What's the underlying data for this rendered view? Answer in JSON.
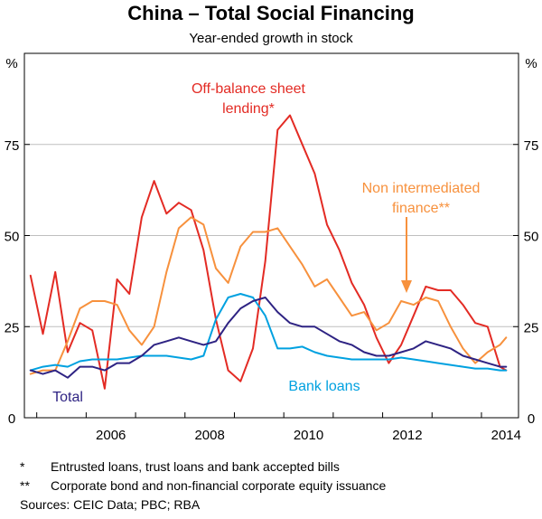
{
  "chart_data": {
    "type": "line",
    "title": "China – Total Social Financing",
    "subtitle": "Year-ended growth in stock",
    "y_unit_left": "%",
    "y_unit_right": "%",
    "ylim": [
      0,
      100
    ],
    "yticks": [
      0,
      25,
      50,
      75
    ],
    "xlim": [
      2004.75,
      2014.75
    ],
    "xticks": [
      2006,
      2008,
      2010,
      2012,
      2014
    ],
    "grid": "horizontal",
    "series": [
      {
        "name": "Off-balance sheet lending*",
        "color": "#e32b24",
        "x": [
          2004.875,
          2005.125,
          2005.375,
          2005.625,
          2005.875,
          2006.125,
          2006.375,
          2006.625,
          2006.875,
          2007.125,
          2007.375,
          2007.625,
          2007.875,
          2008.125,
          2008.375,
          2008.625,
          2008.875,
          2009.125,
          2009.375,
          2009.625,
          2009.875,
          2010.125,
          2010.375,
          2010.625,
          2010.875,
          2011.125,
          2011.375,
          2011.625,
          2011.875,
          2012.125,
          2012.375,
          2012.625,
          2012.875,
          2013.125,
          2013.375,
          2013.625,
          2013.875,
          2014.125,
          2014.375,
          2014.5
        ],
        "y": [
          39,
          23,
          40,
          18,
          26,
          24,
          8,
          38,
          34,
          55,
          65,
          56,
          59,
          57,
          46,
          27,
          13,
          10,
          19,
          43,
          79,
          83,
          75,
          67,
          53,
          46,
          37,
          31,
          22,
          15,
          20,
          28,
          36,
          35,
          35,
          31,
          26,
          25,
          14,
          13
        ]
      },
      {
        "name": "Non intermediated finance**",
        "color": "#f7913d",
        "x": [
          2004.875,
          2005.125,
          2005.375,
          2005.625,
          2005.875,
          2006.125,
          2006.375,
          2006.625,
          2006.875,
          2007.125,
          2007.375,
          2007.625,
          2007.875,
          2008.125,
          2008.375,
          2008.625,
          2008.875,
          2009.125,
          2009.375,
          2009.625,
          2009.875,
          2010.125,
          2010.375,
          2010.625,
          2010.875,
          2011.125,
          2011.375,
          2011.625,
          2011.875,
          2012.125,
          2012.375,
          2012.625,
          2012.875,
          2013.125,
          2013.375,
          2013.625,
          2013.875,
          2014.125,
          2014.375,
          2014.5
        ],
        "y": [
          12,
          13,
          13,
          21,
          30,
          32,
          32,
          31,
          24,
          20,
          25,
          40,
          52,
          55,
          53,
          41,
          37,
          47,
          51,
          51,
          52,
          47,
          42,
          36,
          38,
          33,
          28,
          29,
          24,
          26,
          32,
          31,
          33,
          32,
          25,
          19,
          15,
          18,
          20,
          22
        ]
      },
      {
        "name": "Bank loans",
        "color": "#00a1e0",
        "x": [
          2004.875,
          2005.125,
          2005.375,
          2005.625,
          2005.875,
          2006.125,
          2006.375,
          2006.625,
          2006.875,
          2007.125,
          2007.375,
          2007.625,
          2007.875,
          2008.125,
          2008.375,
          2008.625,
          2008.875,
          2009.125,
          2009.375,
          2009.625,
          2009.875,
          2010.125,
          2010.375,
          2010.625,
          2010.875,
          2011.125,
          2011.375,
          2011.625,
          2011.875,
          2012.125,
          2012.375,
          2012.625,
          2012.875,
          2013.125,
          2013.375,
          2013.625,
          2013.875,
          2014.125,
          2014.375,
          2014.5
        ],
        "y": [
          13,
          14,
          14.5,
          14,
          15.5,
          16,
          16,
          16,
          16.5,
          17,
          17,
          17,
          16.5,
          16,
          17,
          27,
          33,
          34,
          33,
          28,
          19,
          19,
          19.5,
          18,
          17,
          16.5,
          16,
          16,
          16,
          16,
          16.5,
          16,
          15.5,
          15,
          14.5,
          14,
          13.5,
          13.5,
          13,
          13
        ]
      },
      {
        "name": "Total",
        "color": "#2e2383",
        "x": [
          2004.875,
          2005.125,
          2005.375,
          2005.625,
          2005.875,
          2006.125,
          2006.375,
          2006.625,
          2006.875,
          2007.125,
          2007.375,
          2007.625,
          2007.875,
          2008.125,
          2008.375,
          2008.625,
          2008.875,
          2009.125,
          2009.375,
          2009.625,
          2009.875,
          2010.125,
          2010.375,
          2010.625,
          2010.875,
          2011.125,
          2011.375,
          2011.625,
          2011.875,
          2012.125,
          2012.375,
          2012.625,
          2012.875,
          2013.125,
          2013.375,
          2013.625,
          2013.875,
          2014.125,
          2014.375,
          2014.5
        ],
        "y": [
          13,
          12,
          13,
          11,
          14,
          14,
          13,
          15,
          15,
          17,
          20,
          21,
          22,
          21,
          20,
          21,
          26,
          30,
          32,
          33,
          29,
          26,
          25,
          25,
          23,
          21,
          20,
          18,
          17,
          17,
          18,
          19,
          21,
          20,
          19,
          17,
          16,
          15,
          14,
          14
        ]
      }
    ],
    "annotations": {
      "obs_label_line1": "Off-balance sheet",
      "obs_label_line2": "lending*",
      "nif_label_line1": "Non intermediated",
      "nif_label_line2": "finance**",
      "bank_label": "Bank loans",
      "total_label": "Total"
    },
    "notes": [
      {
        "mark": "*",
        "text": "Entrusted loans, trust loans and bank accepted bills"
      },
      {
        "mark": "**",
        "text": "Corporate bond and non-financial corporate equity issuance"
      }
    ],
    "sources": "Sources:  CEIC Data; PBC; RBA"
  }
}
